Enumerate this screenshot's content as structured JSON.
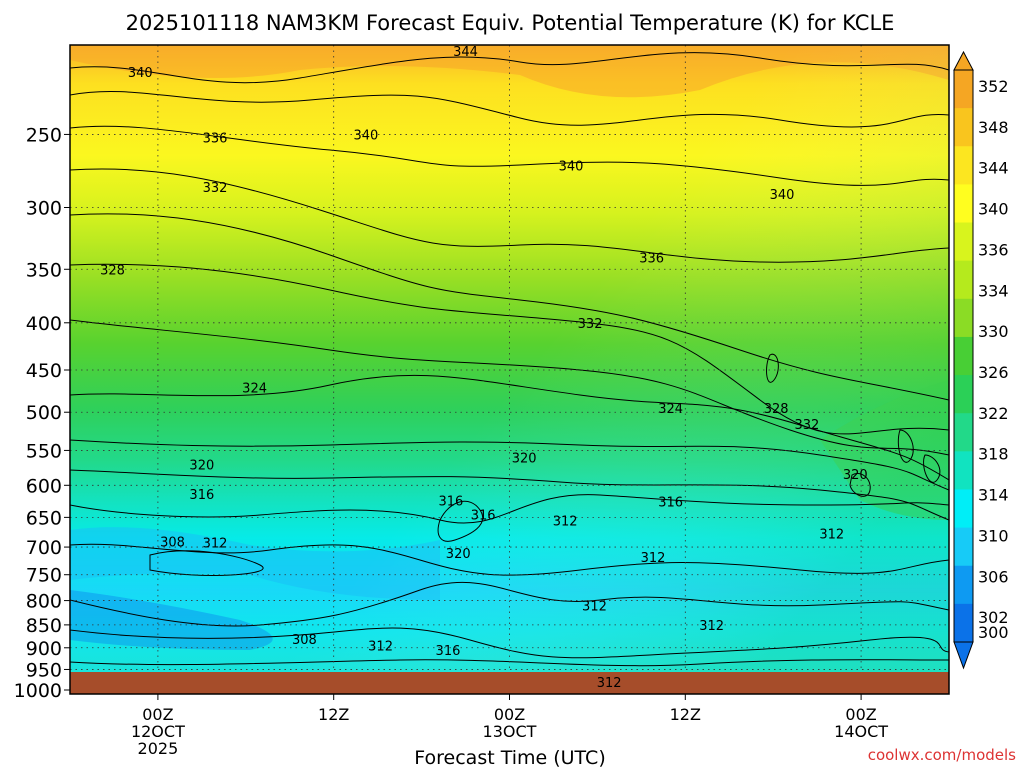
{
  "chart_data": {
    "type": "heatmap",
    "title": "2025101118 NAM3KM Forecast Equiv. Potential Temperature (K) for KCLE",
    "xlabel": "Forecast Time (UTC)",
    "credit": "coolwx.com/models",
    "x_ticks": [
      {
        "hour": 6,
        "lines": [
          "00Z",
          "12OCT",
          "2025"
        ]
      },
      {
        "hour": 18,
        "lines": [
          "12Z"
        ]
      },
      {
        "hour": 30,
        "lines": [
          "00Z",
          "13OCT"
        ]
      },
      {
        "hour": 42,
        "lines": [
          "12Z"
        ]
      },
      {
        "hour": 54,
        "lines": [
          "00Z",
          "14OCT"
        ]
      }
    ],
    "xlim": [
      0,
      60
    ],
    "y_ticks": [
      250,
      300,
      350,
      400,
      450,
      500,
      550,
      600,
      650,
      700,
      750,
      800,
      850,
      900,
      950,
      1000
    ],
    "ylim": [
      200,
      1010
    ],
    "y_scale": "log",
    "y_reversed": true,
    "grid": true,
    "colorbar": {
      "placement": "right",
      "levels": [
        352,
        348,
        344,
        340,
        336,
        334,
        330,
        326,
        322,
        318,
        314,
        310,
        306,
        302,
        300
      ],
      "label_values": [
        352,
        348,
        344,
        340,
        336,
        334,
        330,
        326,
        322,
        318,
        314,
        310,
        306,
        302,
        300
      ],
      "colors": [
        "#f5a623",
        "#f9c51e",
        "#fce620",
        "#fffe1f",
        "#d8f41d",
        "#b5ea1d",
        "#8bdc25",
        "#48cf35",
        "#2bd057",
        "#22d989",
        "#11e3c0",
        "#00eef7",
        "#17cbf7",
        "#0e9af2",
        "#0b72e8"
      ]
    },
    "contour_labels": [
      {
        "text": "340",
        "hour": 4.8,
        "p": 214
      },
      {
        "text": "344",
        "hour": 27.0,
        "p": 203
      },
      {
        "text": "336",
        "hour": 9.9,
        "p": 252
      },
      {
        "text": "340",
        "hour": 20.2,
        "p": 250
      },
      {
        "text": "340",
        "hour": 34.2,
        "p": 270
      },
      {
        "text": "332",
        "hour": 9.9,
        "p": 285
      },
      {
        "text": "340",
        "hour": 48.6,
        "p": 290
      },
      {
        "text": "328",
        "hour": 2.9,
        "p": 350
      },
      {
        "text": "336",
        "hour": 39.7,
        "p": 340
      },
      {
        "text": "332",
        "hour": 35.5,
        "p": 400
      },
      {
        "text": "324",
        "hour": 12.6,
        "p": 470
      },
      {
        "text": "324",
        "hour": 41.0,
        "p": 495
      },
      {
        "text": "328",
        "hour": 48.2,
        "p": 495
      },
      {
        "text": "332",
        "hour": 50.3,
        "p": 515
      },
      {
        "text": "320",
        "hour": 9.0,
        "p": 570
      },
      {
        "text": "320",
        "hour": 31.0,
        "p": 560
      },
      {
        "text": "320",
        "hour": 53.6,
        "p": 583
      },
      {
        "text": "316",
        "hour": 9.0,
        "p": 613
      },
      {
        "text": "316",
        "hour": 26.0,
        "p": 623
      },
      {
        "text": "316",
        "hour": 28.2,
        "p": 645
      },
      {
        "text": "316",
        "hour": 41.0,
        "p": 625
      },
      {
        "text": "312",
        "hour": 33.8,
        "p": 655
      },
      {
        "text": "308",
        "hour": 7.0,
        "p": 690
      },
      {
        "text": "312",
        "hour": 9.9,
        "p": 692
      },
      {
        "text": "312",
        "hour": 52.0,
        "p": 677
      },
      {
        "text": "320",
        "hour": 26.5,
        "p": 710
      },
      {
        "text": "312",
        "hour": 39.8,
        "p": 718
      },
      {
        "text": "312",
        "hour": 35.8,
        "p": 810
      },
      {
        "text": "312",
        "hour": 43.8,
        "p": 850
      },
      {
        "text": "308",
        "hour": 16.0,
        "p": 880
      },
      {
        "text": "312",
        "hour": 21.2,
        "p": 895
      },
      {
        "text": "316",
        "hour": 25.8,
        "p": 905
      },
      {
        "text": "312",
        "hour": 36.8,
        "p": 980
      }
    ]
  }
}
